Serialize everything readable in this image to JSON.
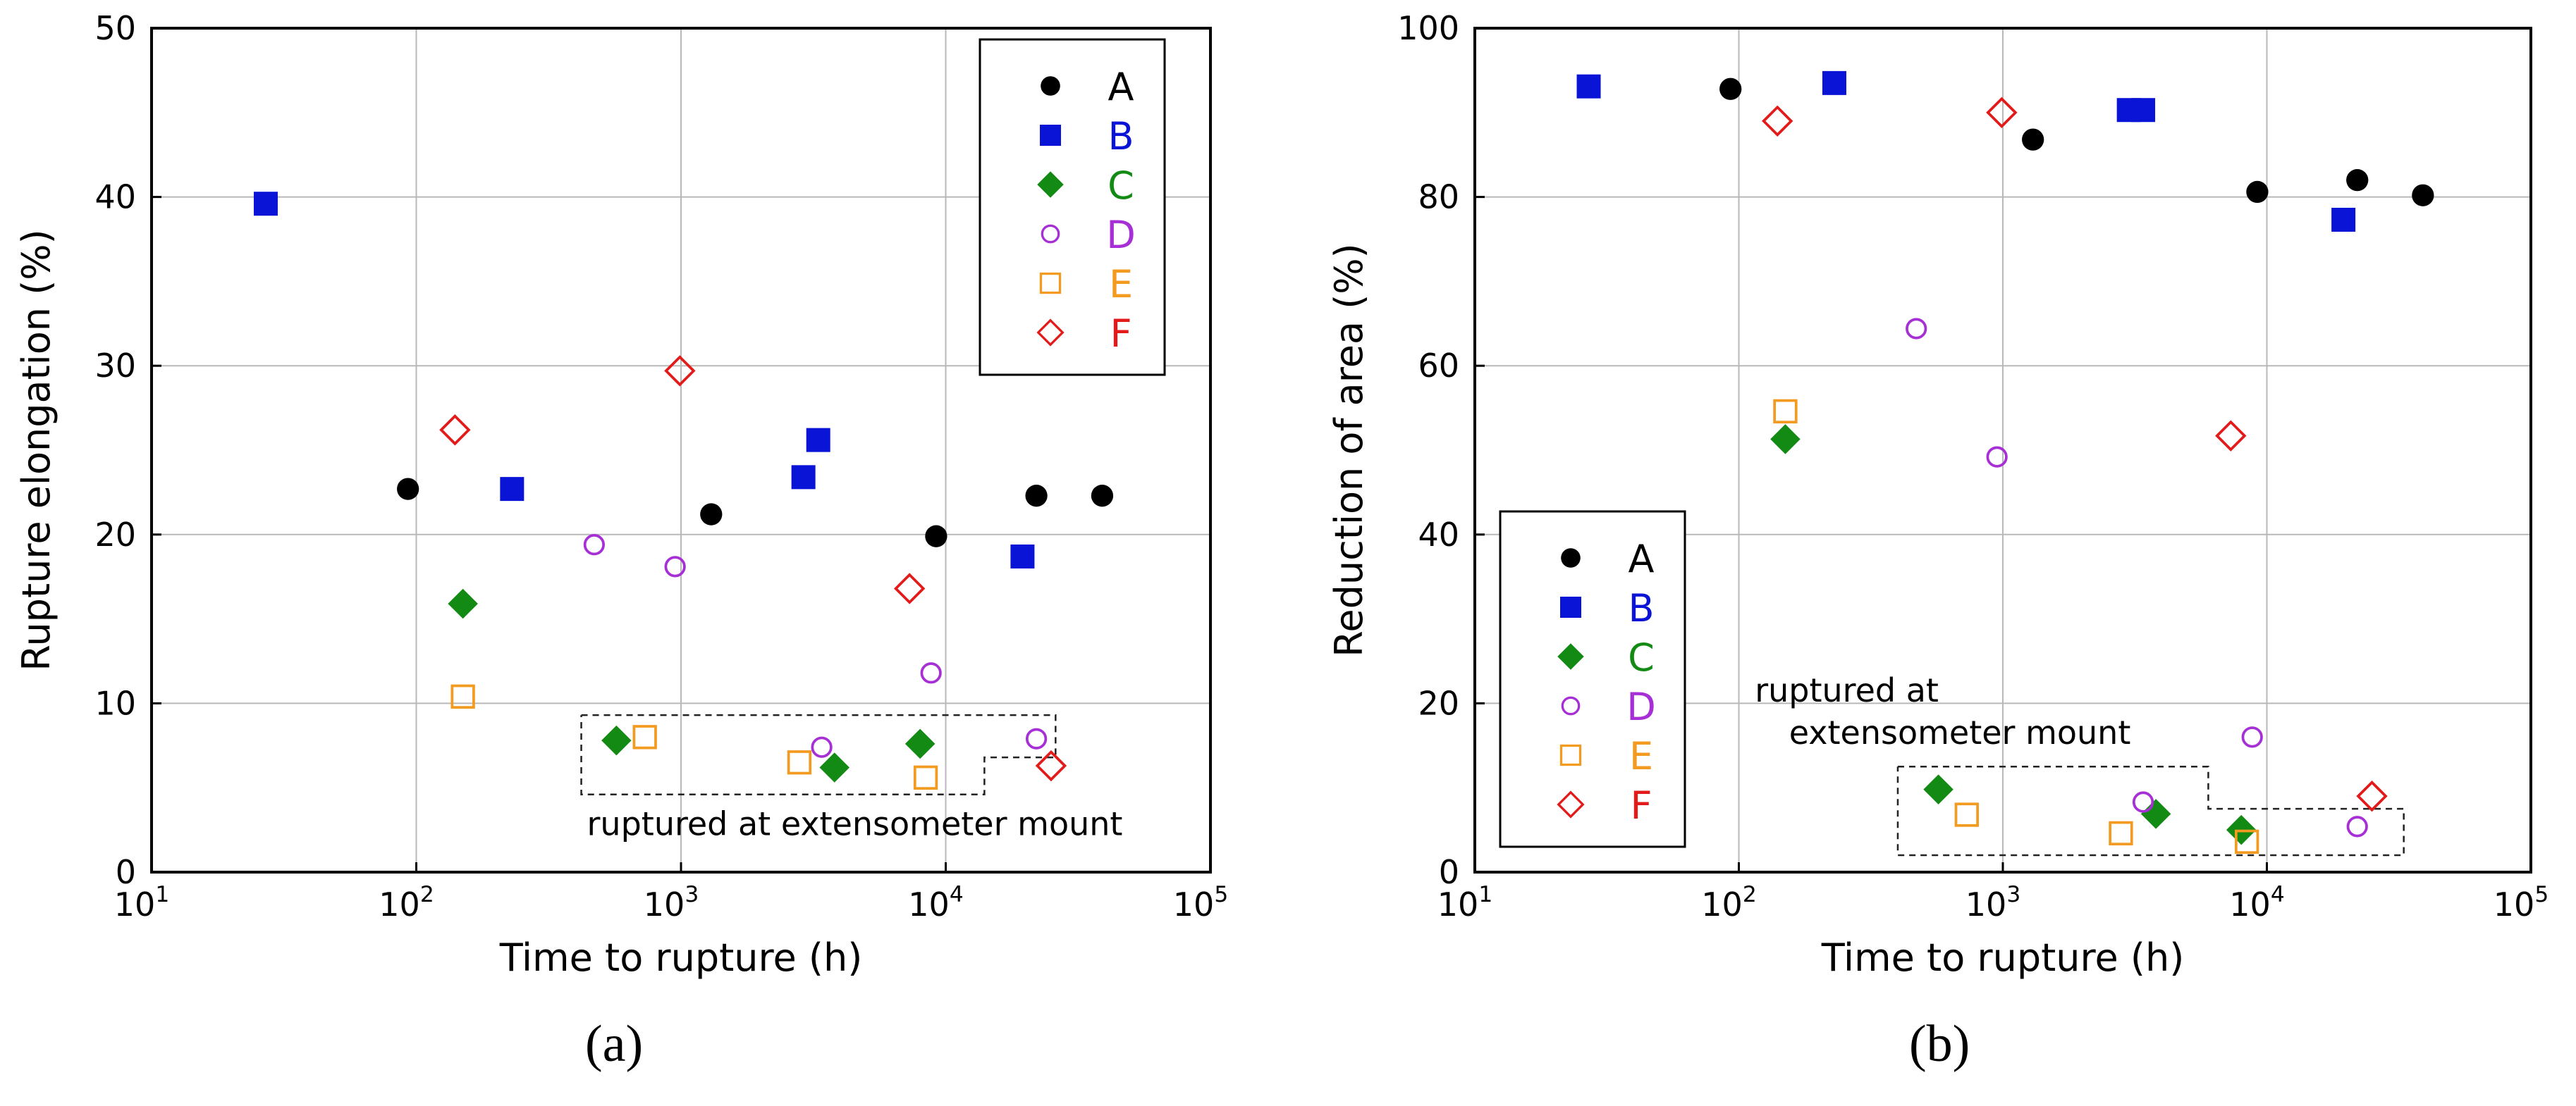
{
  "chart_data": [
    {
      "panel": "(a)",
      "type": "scatter",
      "xscale": "log",
      "xlim": [
        10,
        100000
      ],
      "ylim": [
        0,
        50
      ],
      "xlabel": "Time to rupture (h)",
      "ylabel": "Rupture elongation (%)",
      "x_ticks": [
        {
          "base": "10",
          "exp": "1"
        },
        {
          "base": "10",
          "exp": "2"
        },
        {
          "base": "10",
          "exp": "3"
        },
        {
          "base": "10",
          "exp": "4"
        },
        {
          "base": "10",
          "exp": "5"
        }
      ],
      "y_ticks": [
        "0",
        "10",
        "20",
        "30",
        "40",
        "50"
      ],
      "legend_position": "top-right",
      "annotation": "ruptured at  extensometer mount",
      "series": [
        {
          "name": "A",
          "color": "#000000",
          "marker": "filled-circle",
          "points": [
            [
              93,
              22.7
            ],
            [
              1300,
              21.2
            ],
            [
              9200,
              19.9
            ],
            [
              22000,
              22.3
            ],
            [
              39000,
              22.3
            ]
          ]
        },
        {
          "name": "B",
          "color": "#0a14d6",
          "marker": "filled-square",
          "points": [
            [
              27,
              39.6
            ],
            [
              230,
              22.7
            ],
            [
              2900,
              23.4
            ],
            [
              3300,
              25.6
            ],
            [
              19500,
              18.7
            ]
          ]
        },
        {
          "name": "C",
          "color": "#138a13",
          "marker": "filled-diamond",
          "points": [
            [
              150,
              15.9
            ],
            [
              570,
              7.8
            ],
            [
              3800,
              6.2
            ],
            [
              8000,
              7.6
            ]
          ]
        },
        {
          "name": "D",
          "color": "#a630d6",
          "marker": "open-circle",
          "points": [
            [
              470,
              19.4
            ],
            [
              950,
              18.1
            ],
            [
              3400,
              7.4
            ],
            [
              8800,
              11.8
            ],
            [
              22000,
              7.9
            ]
          ]
        },
        {
          "name": "E",
          "color": "#f39a20",
          "marker": "open-square",
          "points": [
            [
              150,
              10.4
            ],
            [
              730,
              8.0
            ],
            [
              2800,
              6.5
            ],
            [
              8400,
              5.6
            ]
          ]
        },
        {
          "name": "F",
          "color": "#e31a1a",
          "marker": "open-diamond",
          "points": [
            [
              140,
              26.2
            ],
            [
              990,
              29.7
            ],
            [
              7300,
              16.8
            ],
            [
              25000,
              6.3
            ]
          ]
        }
      ]
    },
    {
      "panel": "(b)",
      "type": "scatter",
      "xscale": "log",
      "xlim": [
        10,
        100000
      ],
      "ylim": [
        0,
        100
      ],
      "xlabel": "Time to rupture (h)",
      "ylabel": "Reduction of area (%)",
      "x_ticks": [
        {
          "base": "10",
          "exp": "1"
        },
        {
          "base": "10",
          "exp": "2"
        },
        {
          "base": "10",
          "exp": "3"
        },
        {
          "base": "10",
          "exp": "4"
        },
        {
          "base": "10",
          "exp": "5"
        }
      ],
      "y_ticks": [
        "0",
        "20",
        "40",
        "60",
        "80",
        "100"
      ],
      "legend_position": "bottom-left",
      "annotation_line1": "ruptured at",
      "annotation_line2": "extensometer mount",
      "series": [
        {
          "name": "A",
          "color": "#000000",
          "marker": "filled-circle",
          "points": [
            [
              93,
              92.8
            ],
            [
              1300,
              86.8
            ],
            [
              9200,
              80.6
            ],
            [
              22000,
              82.0
            ],
            [
              39000,
              80.2
            ]
          ]
        },
        {
          "name": "B",
          "color": "#0a14d6",
          "marker": "filled-square",
          "points": [
            [
              27,
              93.1
            ],
            [
              230,
              93.5
            ],
            [
              3000,
              90.3
            ],
            [
              3400,
              90.3
            ],
            [
              19500,
              77.3
            ]
          ]
        },
        {
          "name": "C",
          "color": "#138a13",
          "marker": "filled-diamond",
          "points": [
            [
              150,
              51.3
            ],
            [
              570,
              9.8
            ],
            [
              3800,
              6.9
            ],
            [
              8000,
              5.0
            ]
          ]
        },
        {
          "name": "D",
          "color": "#a630d6",
          "marker": "open-circle",
          "points": [
            [
              470,
              64.4
            ],
            [
              950,
              49.2
            ],
            [
              3400,
              8.3
            ],
            [
              8800,
              16.0
            ],
            [
              22000,
              5.4
            ]
          ]
        },
        {
          "name": "E",
          "color": "#f39a20",
          "marker": "open-square",
          "points": [
            [
              150,
              54.6
            ],
            [
              730,
              6.8
            ],
            [
              2800,
              4.6
            ],
            [
              8400,
              3.6
            ]
          ]
        },
        {
          "name": "F",
          "color": "#e31a1a",
          "marker": "open-diamond",
          "points": [
            [
              140,
              89.0
            ],
            [
              990,
              90.0
            ],
            [
              7300,
              51.7
            ],
            [
              25000,
              9.0
            ]
          ]
        }
      ]
    }
  ],
  "captions": {
    "a": "(a)",
    "b": "(b)"
  }
}
